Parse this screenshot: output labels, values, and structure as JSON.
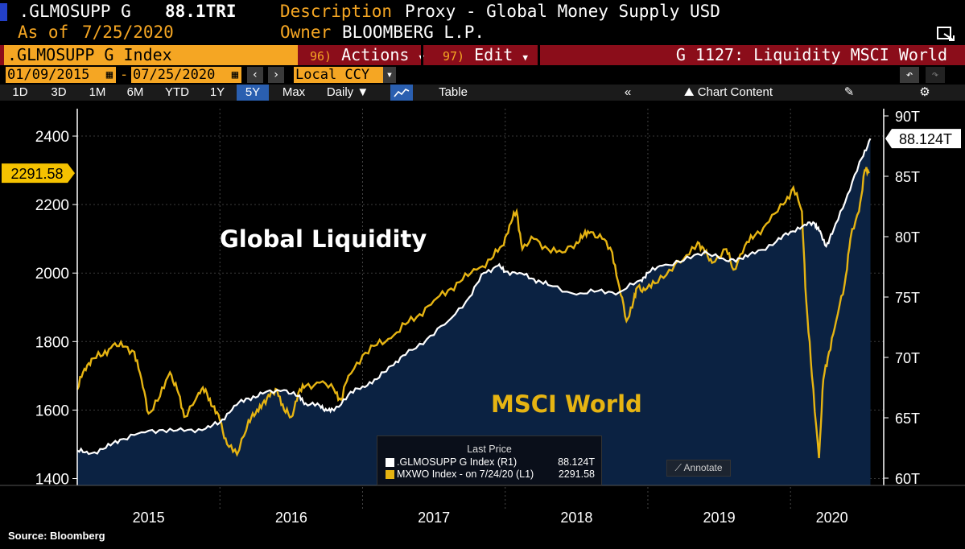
{
  "header": {
    "ticker": ".GLMOSUPP G",
    "last_value": "88.1TRI",
    "desc_label": "Description",
    "desc_value": "Proxy - Global Money Supply USD",
    "asof_label": "As of",
    "asof_value": "7/25/2020",
    "owner_label": "Owner",
    "owner_value": "BLOOMBERG L.P."
  },
  "toolbar": {
    "security": ".GLMOSUPP G Index",
    "actions_num": "96)",
    "actions_label": "Actions",
    "edit_num": "97)",
    "edit_label": "Edit",
    "chart_title": "G 1127: Liquidity MSCI World",
    "date_from": "01/09/2015",
    "date_to": "07/25/2020",
    "currency": "Local CCY",
    "ranges": [
      "1D",
      "3D",
      "1M",
      "6M",
      "YTD",
      "1Y",
      "5Y",
      "Max"
    ],
    "selected_range": "5Y",
    "period": "Daily",
    "table_label": "Table",
    "chart_content_label": "Chart Content"
  },
  "annotations": {
    "global_liquidity": "Global Liquidity",
    "msci_world": "MSCI World",
    "source": "Source: Bloomberg",
    "annotate_button": "Annotate"
  },
  "legend": {
    "title": "Last Price",
    "row1_name": ".GLMOSUPP G Index  (R1)",
    "row1_value": "88.124T",
    "row2_name": "MXWO Index -  on 7/24/20 (L1)",
    "row2_value": "2291.58"
  },
  "colors": {
    "liquidity_line": "#ffffff",
    "liquidity_fill": "#0b2242",
    "msci_line": "#e6b412",
    "accent": "#f5a623",
    "bar_red": "#8b0d1a"
  },
  "chart_data": {
    "type": "line",
    "title": "G 1127: Liquidity MSCI World",
    "x_start": 2015.0,
    "x_end": 2020.58,
    "x_labels": [
      "2015",
      "2016",
      "2017",
      "2018",
      "2019",
      "2020"
    ],
    "left_axis": {
      "ylim": [
        1380,
        2480
      ],
      "ticks": [
        1400,
        1600,
        1800,
        2000,
        2200,
        2400
      ],
      "last_label": "2291.58"
    },
    "right_axis": {
      "ylim": [
        59.4,
        90.6
      ],
      "ticks": [
        "60T",
        "65T",
        "70T",
        "75T",
        "80T",
        "85T",
        "90T"
      ],
      "tick_values": [
        60,
        65,
        70,
        75,
        80,
        85,
        90
      ],
      "last_label": "88.124T"
    },
    "series": [
      {
        "name": ".GLMOSUPP G Index",
        "axis": "right",
        "color": "#ffffff",
        "x": [
          2015.0,
          2015.08,
          2015.2,
          2015.3,
          2015.45,
          2015.6,
          2015.75,
          2015.9,
          2016.0,
          2016.1,
          2016.2,
          2016.3,
          2016.45,
          2016.55,
          2016.6,
          2016.7,
          2016.75,
          2016.8,
          2016.9,
          2017.0,
          2017.1,
          2017.2,
          2017.3,
          2017.45,
          2017.6,
          2017.75,
          2017.85,
          2017.95,
          2018.0,
          2018.1,
          2018.2,
          2018.3,
          2018.5,
          2018.65,
          2018.8,
          2018.95,
          2019.0,
          2019.1,
          2019.25,
          2019.4,
          2019.55,
          2019.65,
          2019.75,
          2019.9,
          2020.0,
          2020.1,
          2020.17,
          2020.2,
          2020.25,
          2020.3,
          2020.4,
          2020.5,
          2020.56
        ],
        "values": [
          62.3,
          62.0,
          62.5,
          63.2,
          63.8,
          64.0,
          63.9,
          64.1,
          64.6,
          66.0,
          66.6,
          67.0,
          67.3,
          66.8,
          66.2,
          66.0,
          65.6,
          65.6,
          66.9,
          67.6,
          68.2,
          69.3,
          70.2,
          71.5,
          73.0,
          75.0,
          77.0,
          77.6,
          77.1,
          77.0,
          76.5,
          76.0,
          75.2,
          75.5,
          75.4,
          76.4,
          77.0,
          77.6,
          78.0,
          78.8,
          78.0,
          78.2,
          78.6,
          79.6,
          80.4,
          81.0,
          81.1,
          80.5,
          79.2,
          80.5,
          83.5,
          86.5,
          88.124
        ]
      },
      {
        "name": "MXWO Index",
        "axis": "left",
        "color": "#e6b412",
        "x": [
          2015.0,
          2015.05,
          2015.1,
          2015.18,
          2015.25,
          2015.32,
          2015.4,
          2015.45,
          2015.5,
          2015.58,
          2015.65,
          2015.7,
          2015.75,
          2015.85,
          2015.9,
          2015.95,
          2016.0,
          2016.05,
          2016.12,
          2016.2,
          2016.25,
          2016.3,
          2016.35,
          2016.4,
          2016.45,
          2016.5,
          2016.55,
          2016.6,
          2016.7,
          2016.8,
          2016.85,
          2016.9,
          2017.0,
          2017.1,
          2017.2,
          2017.3,
          2017.4,
          2017.5,
          2017.6,
          2017.7,
          2017.8,
          2017.9,
          2017.98,
          2018.03,
          2018.08,
          2018.12,
          2018.2,
          2018.3,
          2018.4,
          2018.5,
          2018.55,
          2018.6,
          2018.68,
          2018.75,
          2018.8,
          2018.85,
          2018.9,
          2018.93,
          2018.98,
          2019.05,
          2019.15,
          2019.25,
          2019.35,
          2019.4,
          2019.45,
          2019.55,
          2019.6,
          2019.68,
          2019.75,
          2019.85,
          2019.95,
          2020.02,
          2020.08,
          2020.11,
          2020.15,
          2020.2,
          2020.23,
          2020.27,
          2020.32,
          2020.38,
          2020.42,
          2020.48,
          2020.52,
          2020.55
        ],
        "values": [
          1660,
          1720,
          1750,
          1760,
          1790,
          1785,
          1770,
          1690,
          1590,
          1640,
          1710,
          1660,
          1580,
          1650,
          1660,
          1610,
          1570,
          1500,
          1470,
          1570,
          1590,
          1620,
          1640,
          1660,
          1600,
          1580,
          1650,
          1670,
          1680,
          1660,
          1630,
          1700,
          1760,
          1790,
          1810,
          1850,
          1880,
          1920,
          1950,
          1980,
          2010,
          2040,
          2080,
          2140,
          2180,
          2070,
          2100,
          2070,
          2060,
          2090,
          2110,
          2120,
          2100,
          2060,
          1960,
          1860,
          1920,
          1960,
          1950,
          1970,
          2010,
          2040,
          2090,
          2060,
          2030,
          2070,
          2010,
          2080,
          2110,
          2150,
          2200,
          2250,
          2180,
          1920,
          1700,
          1460,
          1690,
          1770,
          1860,
          1970,
          2100,
          2180,
          2300,
          2291.58
        ]
      }
    ]
  }
}
